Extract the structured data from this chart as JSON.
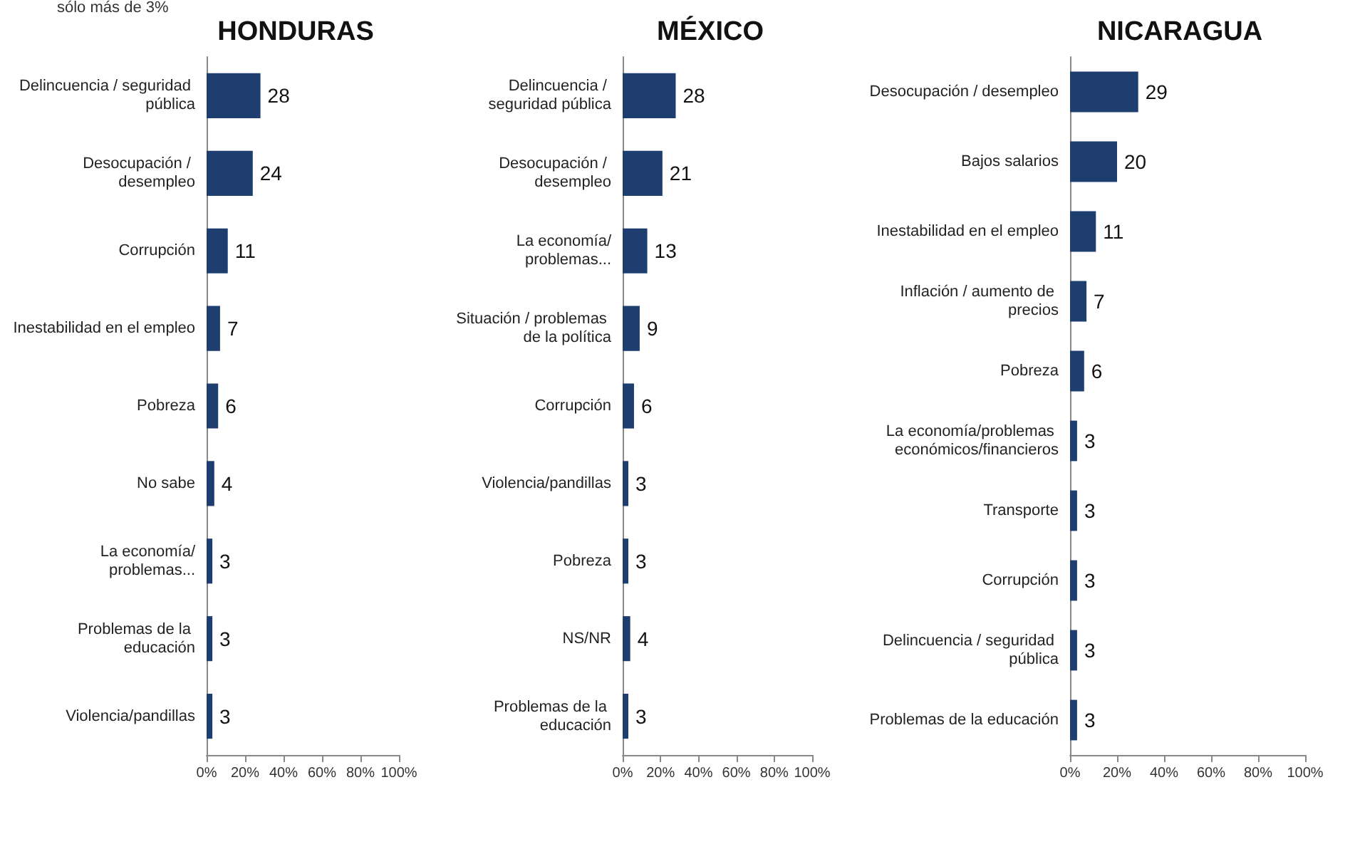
{
  "chart_data": [
    {
      "type": "bar",
      "orientation": "horizontal",
      "title": "HONDURAS",
      "annotations": [
        "sólo más de 3%"
      ],
      "categories": [
        "Delincuencia / seguridad pública",
        "Desocupación / desempleo",
        "Corrupción",
        "Inestabilidad en el empleo",
        "Pobreza",
        "No sabe",
        "La economía/problemas...",
        "Problemas de la educación",
        "Violencia/pandillas"
      ],
      "values": [
        28,
        24,
        11,
        7,
        6,
        4,
        3,
        3,
        3
      ],
      "color": "#1f3e70",
      "data_labels": true,
      "xlim": [
        0,
        100
      ],
      "xticks": [
        {
          "value": 0,
          "label": "0%"
        },
        {
          "value": 20,
          "label": "20%"
        },
        {
          "value": 40,
          "label": "40%"
        },
        {
          "value": 60,
          "label": "60%"
        },
        {
          "value": 80,
          "label": "80%"
        },
        {
          "value": 100,
          "label": "100%"
        }
      ]
    },
    {
      "type": "bar",
      "orientation": "horizontal",
      "title": "MÉXICO",
      "categories": [
        "Delincuencia / seguridad pública",
        "Desocupación / desempleo",
        "La economía/problemas...",
        "Situación / problemas de la política",
        "Corrupción",
        "Violencia/pandillas",
        "Pobreza",
        "NS/NR",
        "Problemas de la educación"
      ],
      "values": [
        28,
        21,
        13,
        9,
        6,
        3,
        3,
        4,
        3
      ],
      "color": "#1f3e70",
      "data_labels": true,
      "xlim": [
        0,
        100
      ],
      "xticks": [
        {
          "value": 0,
          "label": "0%"
        },
        {
          "value": 20,
          "label": "20%"
        },
        {
          "value": 40,
          "label": "40%"
        },
        {
          "value": 60,
          "label": "60%"
        },
        {
          "value": 80,
          "label": "80%"
        },
        {
          "value": 100,
          "label": "100%"
        }
      ]
    },
    {
      "type": "bar",
      "orientation": "horizontal",
      "title": "NICARAGUA",
      "categories": [
        "Desocupación / desempleo",
        "Bajos salarios",
        "Inestabilidad en el empleo",
        "Inflación / aumento de precios",
        "Pobreza",
        "La economía/problemas económicos/financieros",
        "Transporte",
        "Corrupción",
        "Delincuencia / seguridad pública",
        "Problemas de la educación"
      ],
      "values": [
        29,
        20,
        11,
        7,
        6,
        3,
        3,
        3,
        3,
        3
      ],
      "color": "#1f3e70",
      "data_labels": true,
      "xlim": [
        0,
        100
      ],
      "xticks": [
        {
          "value": 0,
          "label": "0%"
        },
        {
          "value": 20,
          "label": "20%"
        },
        {
          "value": 40,
          "label": "40%"
        },
        {
          "value": 60,
          "label": "60%"
        },
        {
          "value": 80,
          "label": "80%"
        },
        {
          "value": 100,
          "label": "100%"
        }
      ]
    }
  ]
}
